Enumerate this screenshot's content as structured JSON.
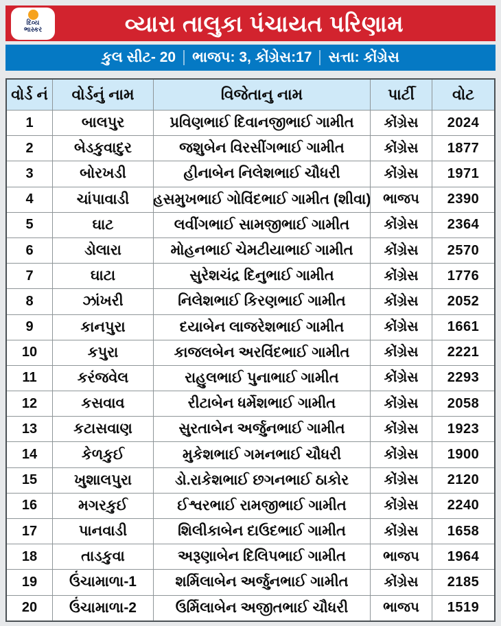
{
  "colors": {
    "title_bar": "#d2232e",
    "summary_bar": "#0579c4",
    "table_header_bg": "#cfe9f8",
    "logo_sun": "#f6a21c",
    "logo_text": "#14265c",
    "page_bg": "#e7e9eb"
  },
  "header": {
    "title": "વ્યારા તાલુકા પંચાયત પરિણામ",
    "logo": {
      "line1": "દિવ્ય",
      "line2": "ભાસ્કર"
    }
  },
  "summary": {
    "seats": "કુલ સીટ- 20",
    "party_split": "ભાજપ: 3, કોંગ્રેસ:17",
    "power": "સત્તા: કોંગ્રેસ"
  },
  "table": {
    "columns": [
      "વોર્ડ નં",
      "વોર્ડનું નામ",
      "વિજેતાનુ નામ",
      "પાર્ટી",
      "વોટ"
    ],
    "rows": [
      {
        "no": "1",
        "ward": "બાલપુર",
        "winner": "પ્રવિણભાઈ દિવાનજીભાઈ ગામીત",
        "party": "કોંગ્રેસ",
        "votes": "2024"
      },
      {
        "no": "2",
        "ward": "બેડકુવાદુર",
        "winner": "જશુબેન વિરસીંગભાઈ ગામીત",
        "party": "કોંગ્રેસ",
        "votes": "1877"
      },
      {
        "no": "3",
        "ward": "બોરખડી",
        "winner": "હીનાબેન નિલેશભાઈ ચૌધરી",
        "party": "કોંગ્રેસ",
        "votes": "1971"
      },
      {
        "no": "4",
        "ward": "ચાંપાવાડી",
        "winner": "હસમુખભાઈ ગોવિંદભાઈ ગામીત (શીવા)",
        "party": "ભાજપ",
        "votes": "2390"
      },
      {
        "no": "5",
        "ward": "ઘાટ",
        "winner": "લવીંગભાઈ સામજીભાઈ ગામીત",
        "party": "કોંગ્રેસ",
        "votes": "2364"
      },
      {
        "no": "6",
        "ward": "ડોલારા",
        "winner": "મોહનભાઈ ચેમટીયાભાઈ ગામીત",
        "party": "કોંગ્રેસ",
        "votes": "2570"
      },
      {
        "no": "7",
        "ward": "ઘાટા",
        "winner": "સુરેશચંદ્ર દિનુભાઈ ગામીત",
        "party": "કોંગ્રેસ",
        "votes": "1776"
      },
      {
        "no": "8",
        "ward": "ઝાંખરી",
        "winner": "નિલેશભાઈ કિરણભાઈ ગામીત",
        "party": "કોંગ્રેસ",
        "votes": "2052"
      },
      {
        "no": "9",
        "ward": "કાનપુરા",
        "winner": "દયાબેન લાજરેશભાઈ ગામીત",
        "party": "કોંગ્રેસ",
        "votes": "1661"
      },
      {
        "no": "10",
        "ward": "કપુરા",
        "winner": "કાજલબેન અરવિંદભાઈ ગામીત",
        "party": "કોંગ્રેસ",
        "votes": "2221"
      },
      {
        "no": "11",
        "ward": "કરંજવેલ",
        "winner": "રાહુલભાઈ પુનાભાઈ ગામીત",
        "party": "કોંગ્રેસ",
        "votes": "2293"
      },
      {
        "no": "12",
        "ward": "કસવાવ",
        "winner": "રીટાબેન ધર્મેશભાઈ ગામીત",
        "party": "કોંગ્રેસ",
        "votes": "2058"
      },
      {
        "no": "13",
        "ward": "કટાસવાણ",
        "winner": "સુરતાબેન અર્જુનભાઈ ગામીત",
        "party": "કોંગ્રેસ",
        "votes": "1923"
      },
      {
        "no": "14",
        "ward": "કેળકુઈ",
        "winner": "મુકેશભાઈ ગમનભાઈ ચૌધરી",
        "party": "કોંગ્રેસ",
        "votes": "1900"
      },
      {
        "no": "15",
        "ward": "ખુશાલપુરા",
        "winner": "ડો.રાકેશભાઈ છગનભાઈ ઠાકોર",
        "party": "કોંગ્રેસ",
        "votes": "2120"
      },
      {
        "no": "16",
        "ward": "મગરકુઈ",
        "winner": "ઈશ્વરભાઈ રામજીભાઈ ગામીત",
        "party": "કોંગ્રેસ",
        "votes": "2240"
      },
      {
        "no": "17",
        "ward": "પાનવાડી",
        "winner": "શિલીકાબેન દાઉદભાઈ ગામીત",
        "party": "કોંગ્રેસ",
        "votes": "1658"
      },
      {
        "no": "18",
        "ward": "તાડકુવા",
        "winner": "અરૂણાબેન દિલિપભાઈ ગામીત",
        "party": "ભાજપ",
        "votes": "1964"
      },
      {
        "no": "19",
        "ward": "ઉંચામાળા-1",
        "winner": "શર્મિલાબેન અર્જુનભાઈ ગામીત",
        "party": "કોંગ્રેસ",
        "votes": "2185"
      },
      {
        "no": "20",
        "ward": "ઉંચામાળા-2",
        "winner": "ઉર્મિલાબેન અજીતભાઈ ચૌધરી",
        "party": "ભાજપ",
        "votes": "1519"
      }
    ]
  },
  "chart_data": {
    "type": "table",
    "title": "વ્યારા તાલુકા પંચાયત પરિણામ",
    "subtitle": "કુલ સીટ- 20 | ભાજપ: 3, કોંગ્રેસ:17 | સત્તા: કોંગ્રેસ",
    "columns": [
      "વોર્ડ નં",
      "વોર્ડનું નામ",
      "વિજેતાનુ નામ",
      "પાર્ટી",
      "વોટ"
    ],
    "rows": [
      [
        "1",
        "બાલપુર",
        "પ્રવિણભાઈ દિવાનજીભાઈ ગામીત",
        "કોંગ્રેસ",
        2024
      ],
      [
        "2",
        "બેડકુવાદુર",
        "જશુબેન વિરસીંગભાઈ ગામીત",
        "કોંગ્રેસ",
        1877
      ],
      [
        "3",
        "બોરખડી",
        "હીનાબેન નિલેશભાઈ ચૌધરી",
        "કોંગ્રેસ",
        1971
      ],
      [
        "4",
        "ચાંપાવાડી",
        "હસમુખભાઈ ગોવિંદભાઈ ગામીત (શીવા)",
        "ભાજપ",
        2390
      ],
      [
        "5",
        "ઘાટ",
        "લવીંગભાઈ સામજીભાઈ ગામીત",
        "કોંગ્રેસ",
        2364
      ],
      [
        "6",
        "ડોલારા",
        "મોહનભાઈ ચેમટીયાભાઈ ગામીત",
        "કોંગ્રેસ",
        2570
      ],
      [
        "7",
        "ઘાટા",
        "સુરેશચંદ્ર દિનુભાઈ ગામીત",
        "કોંગ્રેસ",
        1776
      ],
      [
        "8",
        "ઝાંખરી",
        "નિલેશભાઈ કિરણભાઈ ગામીત",
        "કોંગ્રેસ",
        2052
      ],
      [
        "9",
        "કાનપુરા",
        "દયાબેન લાજરેશભાઈ ગામીત",
        "કોંગ્રેસ",
        1661
      ],
      [
        "10",
        "કપુરા",
        "કાજલબેન અરવિંદભાઈ ગામીત",
        "કોંગ્રેસ",
        2221
      ],
      [
        "11",
        "કરંજવેલ",
        "રાહુલભાઈ પુનાભાઈ ગામીત",
        "કોંગ્રેસ",
        2293
      ],
      [
        "12",
        "કસવાવ",
        "રીટાબેન ધર્મેશભાઈ ગામીત",
        "કોંગ્રેસ",
        2058
      ],
      [
        "13",
        "કટાસવાણ",
        "સુરતાબેન અર્જુનભાઈ ગામીત",
        "કોંગ્રેસ",
        1923
      ],
      [
        "14",
        "કેળકુઈ",
        "મુકેશભાઈ ગમનભાઈ ચૌધરી",
        "કોંગ્રેસ",
        1900
      ],
      [
        "15",
        "ખુશાલપુરા",
        "ડો.રાકેશભાઈ છગનભાઈ ઠાકોર",
        "કોંગ્રેસ",
        2120
      ],
      [
        "16",
        "મગરકુઈ",
        "ઈશ્વરભાઈ રામજીભાઈ ગામીત",
        "કોંગ્રેસ",
        2240
      ],
      [
        "17",
        "પાનવાડી",
        "શિલીકાબેન દાઉદભાઈ ગામીત",
        "કોંગ્રેસ",
        1658
      ],
      [
        "18",
        "તાડકુવા",
        "અરૂણાબેન દિલિપભાઈ ગામીત",
        "ભાજપ",
        1964
      ],
      [
        "19",
        "ઉંચામાળા-1",
        "શર્મિલાબેન અર્જુનભાઈ ગામીત",
        "કોંગ્રેસ",
        2185
      ],
      [
        "20",
        "ઉંચામાળા-2",
        "ઉર્મિલાબેન અજીતભાઈ ચૌધરી",
        "ભાજપ",
        1519
      ]
    ]
  }
}
